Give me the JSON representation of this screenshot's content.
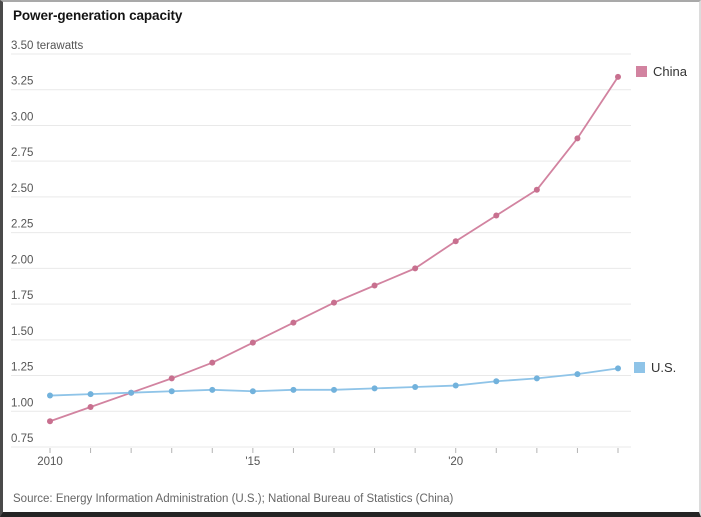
{
  "title": "Power-generation capacity",
  "source": "Source: Energy Information Administration (U.S.); National Bureau of Statistics (China)",
  "legend": {
    "china": {
      "label": "China",
      "color": "#d283a0"
    },
    "us": {
      "label": "U.S.",
      "color": "#8fc4e8"
    }
  },
  "colors": {
    "gridline": "#e9e9e9",
    "axis_tick": "#b3b3b3",
    "tick_text": "#555555",
    "china_line": "#d283a0",
    "china_marker": "#c8708f",
    "us_line": "#8fc4e8",
    "us_marker": "#72b2dc"
  },
  "chart_data": {
    "type": "line",
    "title": "Power-generation capacity",
    "ylabel": "terawatts",
    "xlabel": "",
    "grid": true,
    "legend_position": "right of line ends",
    "x": [
      2010,
      2011,
      2012,
      2013,
      2014,
      2015,
      2016,
      2017,
      2018,
      2019,
      2020,
      2021,
      2022,
      2023,
      2024
    ],
    "x_tick_labels": [
      {
        "index": 0,
        "label": "2010"
      },
      {
        "index": 5,
        "label": "'15"
      },
      {
        "index": 10,
        "label": "'20"
      }
    ],
    "ylim": [
      0.75,
      3.5
    ],
    "y_ticks": [
      {
        "value": 0.75,
        "label": "0.75"
      },
      {
        "value": 1.0,
        "label": "1.00"
      },
      {
        "value": 1.25,
        "label": "1.25"
      },
      {
        "value": 1.5,
        "label": "1.50"
      },
      {
        "value": 1.75,
        "label": "1.75"
      },
      {
        "value": 2.0,
        "label": "2.00"
      },
      {
        "value": 2.25,
        "label": "2.25"
      },
      {
        "value": 2.5,
        "label": "2.50"
      },
      {
        "value": 2.75,
        "label": "2.75"
      },
      {
        "value": 3.0,
        "label": "3.00"
      },
      {
        "value": 3.25,
        "label": "3.25"
      },
      {
        "value": 3.5,
        "label": "3.50 terawatts"
      }
    ],
    "series": [
      {
        "name": "China",
        "color": "#d283a0",
        "marker_color": "#c8708f",
        "values": [
          0.93,
          1.03,
          1.13,
          1.23,
          1.34,
          1.48,
          1.62,
          1.76,
          1.88,
          2.0,
          2.19,
          2.37,
          2.55,
          2.91,
          3.34
        ]
      },
      {
        "name": "U.S.",
        "color": "#8fc4e8",
        "marker_color": "#72b2dc",
        "values": [
          1.11,
          1.12,
          1.13,
          1.14,
          1.15,
          1.14,
          1.15,
          1.15,
          1.16,
          1.17,
          1.18,
          1.21,
          1.23,
          1.26,
          1.3
        ]
      }
    ]
  }
}
